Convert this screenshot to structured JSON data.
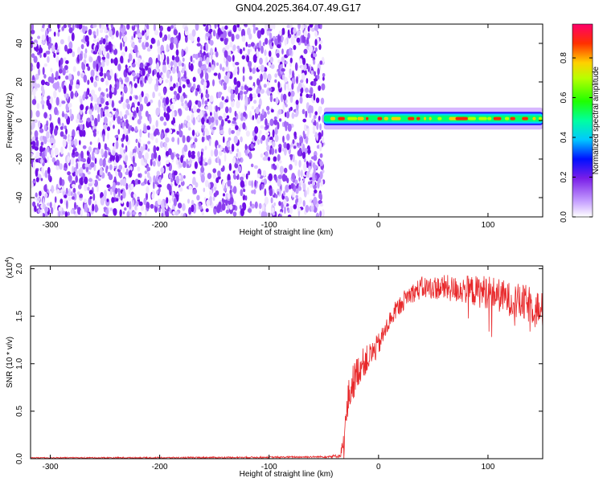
{
  "title": "GN04.2025.364.07.49.G17",
  "colors": {
    "snr_line": "#e8292b",
    "noise_purple": "#7a1ee8",
    "axis": "#000000"
  },
  "chart_data": [
    {
      "type": "heatmap",
      "xlabel": "Height of straight line (km)",
      "ylabel": "Frequency (Hz)",
      "xlim": [
        -318,
        150
      ],
      "ylim": [
        -50,
        50
      ],
      "x_ticks": [
        -300,
        -200,
        -100,
        0,
        100
      ],
      "x_tick_labels": [
        "-300",
        "-200",
        "-100",
        "0",
        "100"
      ],
      "y_ticks": [
        -40,
        -20,
        0,
        20,
        40
      ],
      "y_tick_labels": [
        "-40",
        "-20",
        "0",
        "20",
        "40"
      ],
      "noise_region_x": [
        -318,
        -50
      ],
      "signal_band": {
        "x": [
          -50,
          150
        ],
        "y_center": 1,
        "y_halfwidth": 3
      },
      "colorbar": {
        "label": "Normalized spectral amplitude",
        "range": [
          0,
          0.97
        ],
        "ticks": [
          0.0,
          0.2,
          0.4,
          0.6,
          0.8
        ],
        "tick_labels": [
          "0.0",
          "0.2",
          "0.4",
          "0.6",
          "0.8"
        ]
      }
    },
    {
      "type": "line",
      "xlabel": "Height of straight line (km)",
      "ylabel": "SNR (10 * v/v)",
      "y_multiplier": "(x10",
      "y_multiplier_exp": "4",
      "y_multiplier_close": ")",
      "xlim": [
        -318,
        150
      ],
      "ylim": [
        0,
        2.03
      ],
      "x_ticks": [
        -300,
        -200,
        -100,
        0,
        100
      ],
      "x_tick_labels": [
        "-300",
        "-200",
        "-100",
        "0",
        "100"
      ],
      "y_ticks": [
        0.0,
        0.5,
        1.0,
        1.5,
        2.0
      ],
      "y_tick_labels": [
        "0.0",
        "0.5",
        "1.0",
        "1.5",
        "2.0"
      ],
      "series": [
        {
          "x": [
            -318,
            -200,
            -100,
            -50,
            -35,
            -31,
            -28,
            -25,
            -20,
            -15,
            -10,
            -5,
            0,
            5,
            10,
            15,
            20,
            25,
            30,
            40,
            50,
            60,
            70,
            80,
            90,
            100,
            110,
            120,
            130,
            140,
            150
          ],
          "y": [
            0.01,
            0.01,
            0.015,
            0.02,
            0.03,
            0.25,
            0.6,
            0.75,
            0.9,
            1.0,
            1.05,
            1.12,
            1.2,
            1.32,
            1.45,
            1.55,
            1.62,
            1.7,
            1.74,
            1.8,
            1.8,
            1.8,
            1.78,
            1.78,
            1.76,
            1.76,
            1.72,
            1.68,
            1.64,
            1.62,
            1.55
          ],
          "noise_amp": [
            0.005,
            0.008,
            0.008,
            0.01,
            0.02,
            0.15,
            0.2,
            0.2,
            0.18,
            0.16,
            0.15,
            0.14,
            0.12,
            0.1,
            0.1,
            0.1,
            0.1,
            0.1,
            0.1,
            0.12,
            0.12,
            0.14,
            0.14,
            0.15,
            0.17,
            0.18,
            0.18,
            0.18,
            0.2,
            0.2,
            0.2
          ]
        }
      ]
    }
  ]
}
